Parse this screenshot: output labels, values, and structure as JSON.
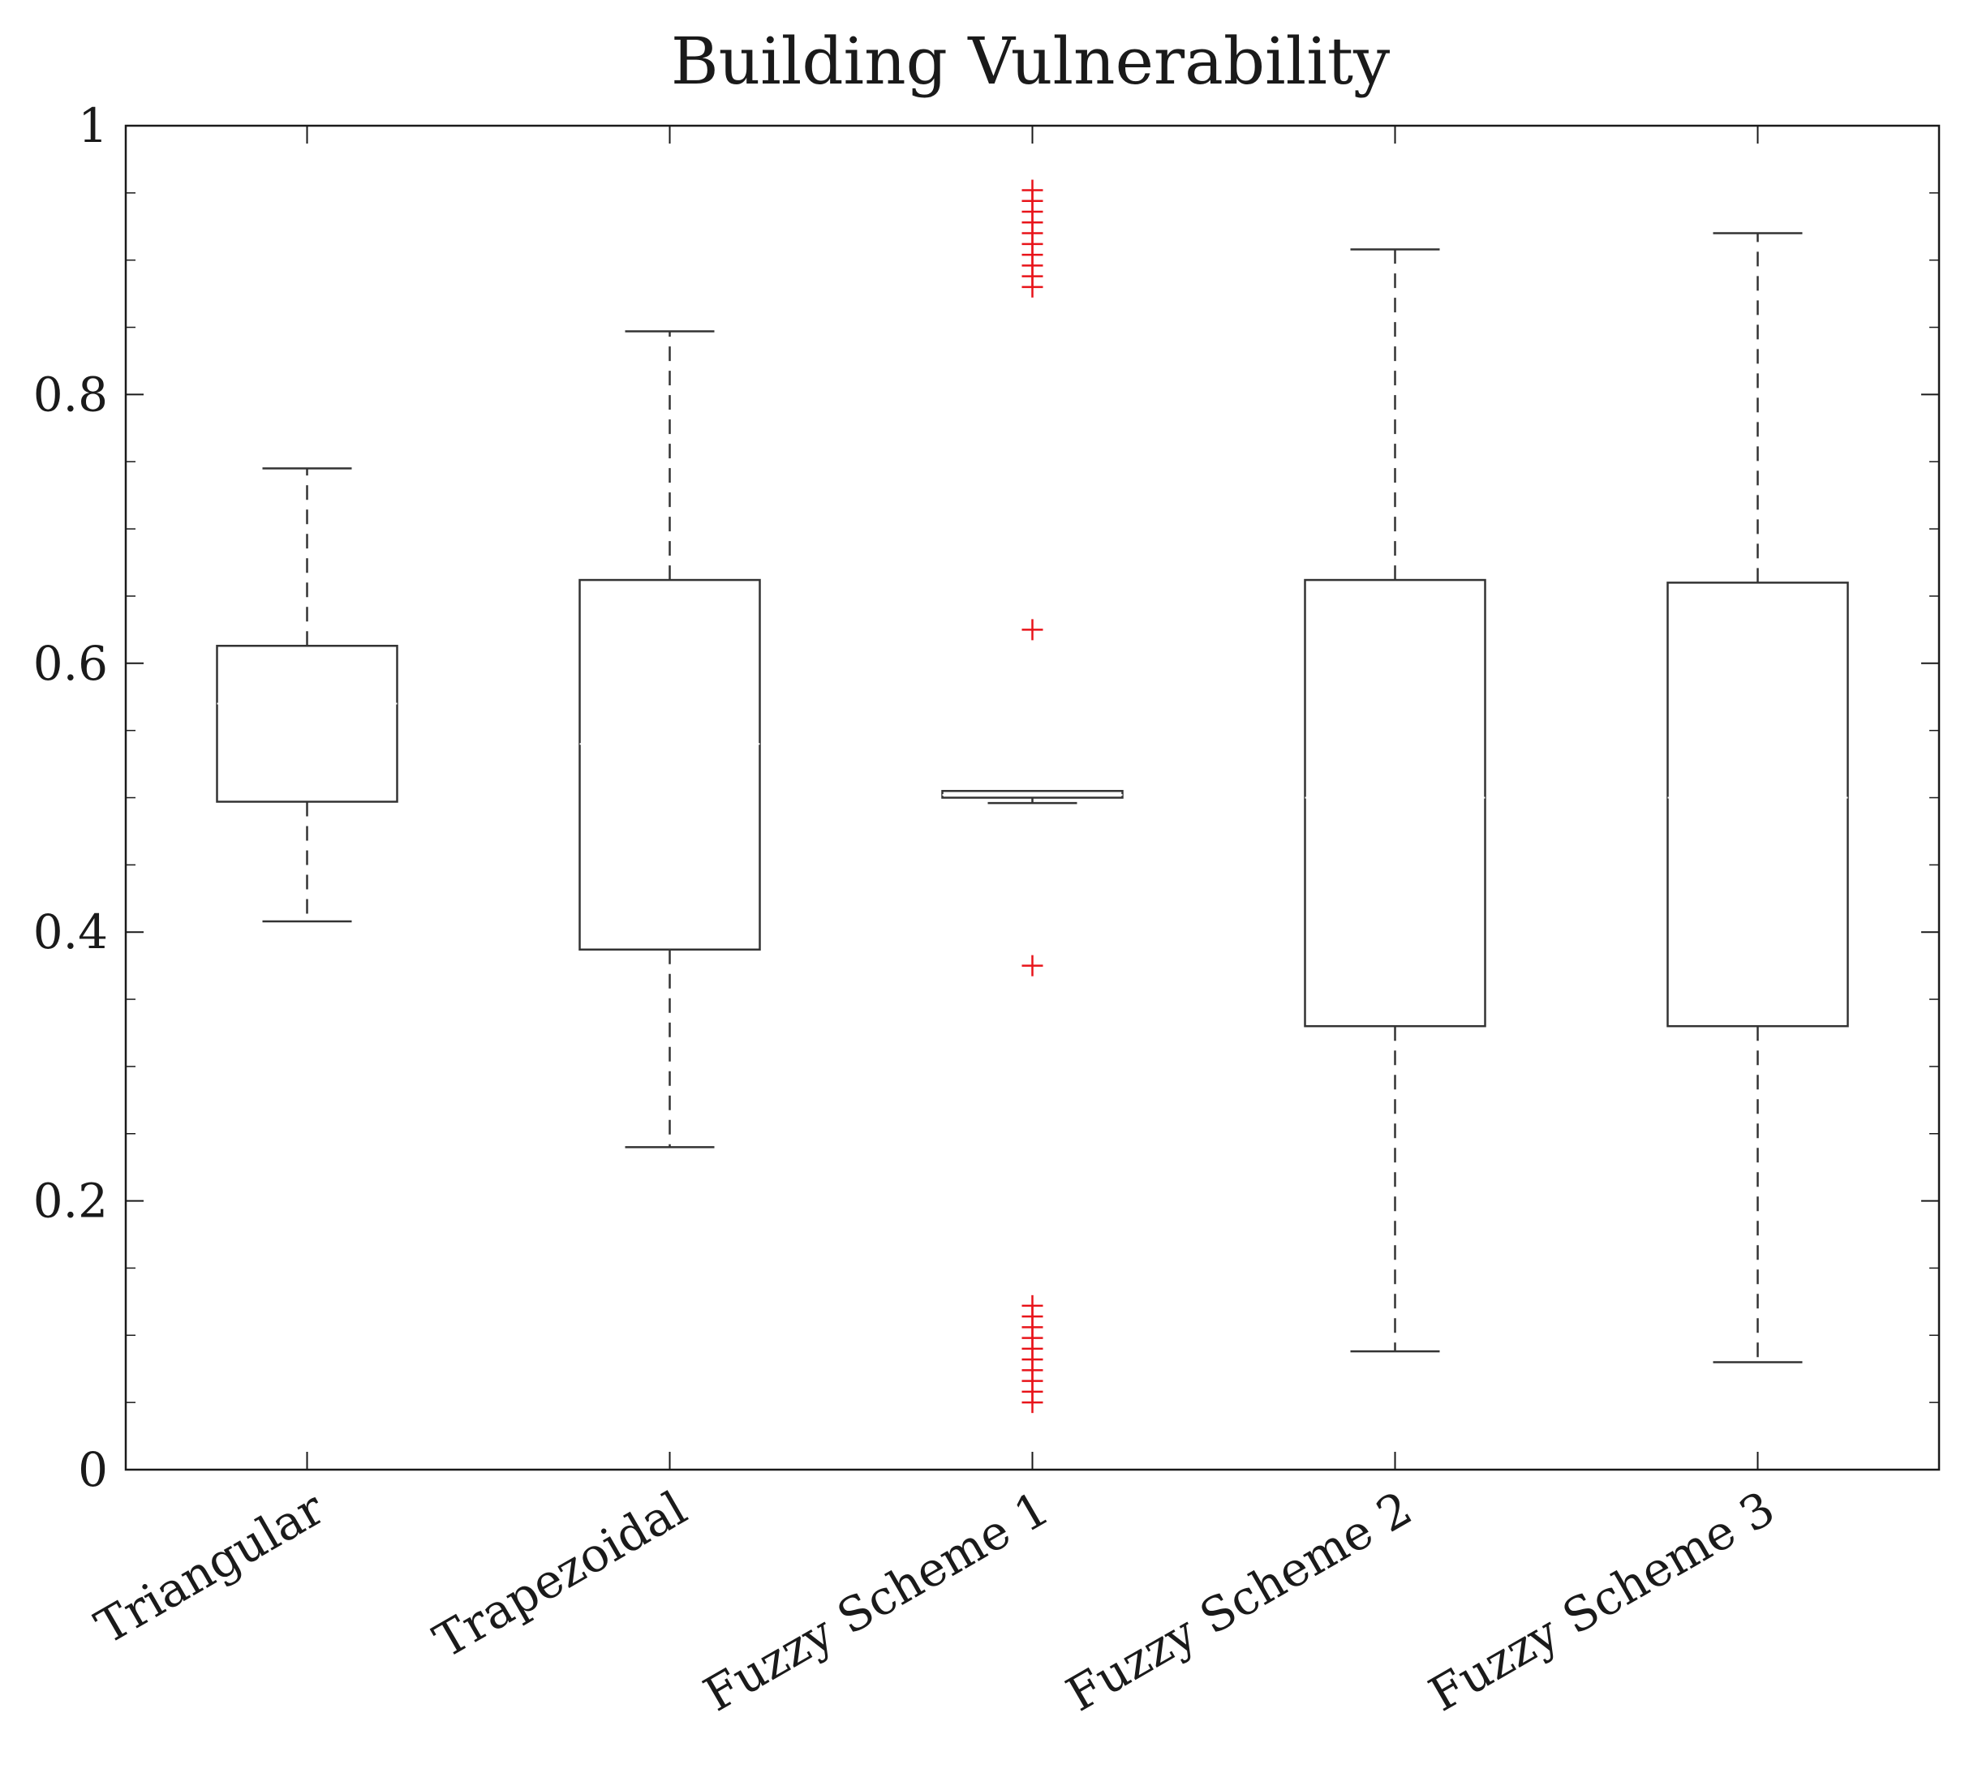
{
  "chart_data": {
    "type": "box",
    "title": "Building Vulnerability",
    "xlabel": "",
    "ylabel": "",
    "ylim": [
      0,
      1
    ],
    "yticks": [
      0,
      0.2,
      0.4,
      0.6,
      0.8,
      1
    ],
    "ytick_labels": [
      "0",
      "0.2",
      "0.4",
      "0.6",
      "0.8",
      "1"
    ],
    "categories": [
      "Triangular",
      "Trapezoidal",
      "Fuzzy Scheme 1",
      "Fuzzy Scheme 2",
      "Fuzzy Scheme 3"
    ],
    "boxes": [
      {
        "name": "Triangular",
        "whisker_low": 0.408,
        "q1": 0.497,
        "median": 0.57,
        "q3": 0.613,
        "whisker_high": 0.745,
        "outliers": []
      },
      {
        "name": "Trapezoidal",
        "whisker_low": 0.24,
        "q1": 0.387,
        "median": 0.54,
        "q3": 0.662,
        "whisker_high": 0.847,
        "outliers": []
      },
      {
        "name": "Fuzzy Scheme 1",
        "whisker_low": 0.496,
        "q1": 0.5,
        "median": 0.502,
        "q3": 0.505,
        "whisker_high": 0.505,
        "outliers": [
          0.375,
          0.625,
          0.05,
          0.058,
          0.066,
          0.074,
          0.082,
          0.09,
          0.098,
          0.106,
          0.114,
          0.122,
          0.88,
          0.888,
          0.896,
          0.904,
          0.912,
          0.92,
          0.928,
          0.936,
          0.944,
          0.952
        ]
      },
      {
        "name": "Fuzzy Scheme 2",
        "whisker_low": 0.088,
        "q1": 0.33,
        "median": 0.5,
        "q3": 0.662,
        "whisker_high": 0.908,
        "outliers": []
      },
      {
        "name": "Fuzzy Scheme 3",
        "whisker_low": 0.08,
        "q1": 0.33,
        "median": 0.5,
        "q3": 0.66,
        "whisker_high": 0.92,
        "outliers": []
      }
    ],
    "colors": {
      "box": "#333333",
      "outlier": "#e8141a",
      "axis": "#1a1a1a"
    }
  }
}
